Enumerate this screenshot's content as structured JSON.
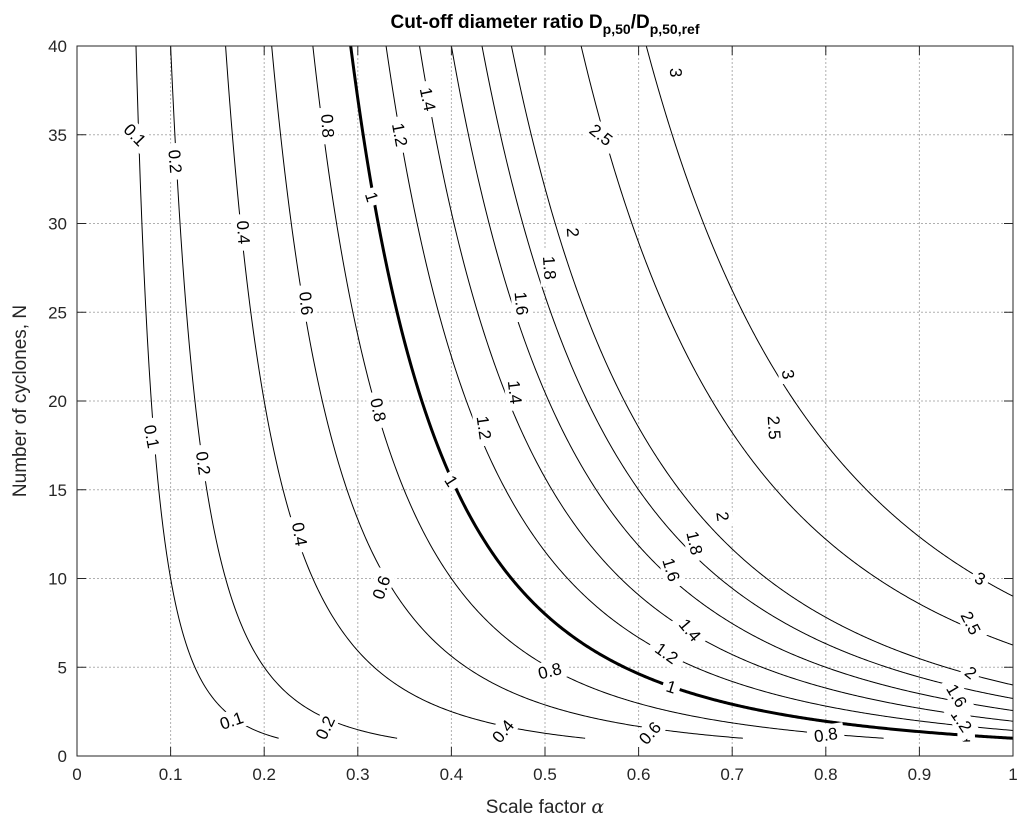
{
  "chart_data": {
    "type": "contour",
    "title_main": "Cut-off diameter ratio D",
    "title_sub1": "p,50",
    "title_mid": "/D",
    "title_sub2": "p,50,ref",
    "xlabel_text": "Scale factor ",
    "xlabel_symbol": "α",
    "ylabel": "Number of cyclones, N",
    "xlim": [
      0,
      1
    ],
    "ylim": [
      0,
      40
    ],
    "xticks": [
      0,
      0.1,
      0.2,
      0.3,
      0.4,
      0.5,
      0.6,
      0.7,
      0.8,
      0.9,
      1
    ],
    "xtick_labels": [
      "0",
      "0.1",
      "0.2",
      "0.3",
      "0.4",
      "0.5",
      "0.6",
      "0.7",
      "0.8",
      "0.9",
      "1"
    ],
    "yticks": [
      0,
      5,
      10,
      15,
      20,
      25,
      30,
      35,
      40
    ],
    "ytick_labels": [
      "0",
      "5",
      "10",
      "15",
      "20",
      "25",
      "30",
      "35",
      "40"
    ],
    "grid": true,
    "relation": "ratio = alpha^1.5 * N^0.5",
    "colors": {
      "line": "#000000",
      "grid": "#b0b0b0",
      "axis": "#262626"
    },
    "levels": [
      {
        "value": 0.1,
        "label": "0.1",
        "bold": false,
        "label_positions": [
          [
            0.062,
            35
          ],
          [
            0.08,
            18
          ],
          [
            0.165,
            2
          ]
        ]
      },
      {
        "value": 0.2,
        "label": "0.2",
        "bold": false,
        "label_positions": [
          [
            0.105,
            33.5
          ],
          [
            0.135,
            16.5
          ],
          [
            0.265,
            1.6
          ]
        ]
      },
      {
        "value": 0.4,
        "label": "0.4",
        "bold": false,
        "label_positions": [
          [
            0.178,
            29.5
          ],
          [
            0.238,
            12.5
          ],
          [
            0.455,
            1.4
          ]
        ]
      },
      {
        "value": 0.6,
        "label": "0.6",
        "bold": false,
        "label_positions": [
          [
            0.245,
            25.5
          ],
          [
            0.325,
            9.5
          ],
          [
            0.612,
            1.3
          ]
        ]
      },
      {
        "value": 0.8,
        "label": "0.8",
        "bold": false,
        "label_positions": [
          [
            0.268,
            35.5
          ],
          [
            0.322,
            19.5
          ],
          [
            0.505,
            4.8
          ],
          [
            0.8,
            1.2
          ]
        ]
      },
      {
        "value": 1,
        "label": "1",
        "bold": true,
        "label_positions": [
          [
            0.315,
            31.5
          ],
          [
            0.4,
            15.5
          ],
          [
            0.635,
            3.9
          ],
          [
            0.95,
            1.15
          ]
        ]
      },
      {
        "value": 1.2,
        "label": "1.2",
        "bold": false,
        "label_positions": [
          [
            0.345,
            35
          ],
          [
            0.435,
            18.5
          ],
          [
            0.63,
            5.8
          ],
          [
            0.945,
            2
          ]
        ]
      },
      {
        "value": 1.4,
        "label": "1.4",
        "bold": false,
        "label_positions": [
          [
            0.375,
            37
          ],
          [
            0.468,
            20.5
          ],
          [
            0.655,
            7.1
          ]
        ]
      },
      {
        "value": 1.6,
        "label": "1.6",
        "bold": false,
        "label_positions": [
          [
            0.475,
            25.5
          ],
          [
            0.635,
            10.5
          ],
          [
            0.94,
            3.4
          ]
        ]
      },
      {
        "value": 1.8,
        "label": "1.8",
        "bold": false,
        "label_positions": [
          [
            0.505,
            27.5
          ],
          [
            0.66,
            12
          ]
        ]
      },
      {
        "value": 2,
        "label": "2",
        "bold": false,
        "label_positions": [
          [
            0.53,
            29.5
          ],
          [
            0.69,
            13.5
          ],
          [
            0.955,
            4.7
          ]
        ]
      },
      {
        "value": 2.5,
        "label": "2.5",
        "bold": false,
        "label_positions": [
          [
            0.56,
            35
          ],
          [
            0.745,
            18.5
          ],
          [
            0.955,
            7.5
          ]
        ]
      },
      {
        "value": 3,
        "label": "3",
        "bold": false,
        "label_positions": [
          [
            0.64,
            38.5
          ],
          [
            0.76,
            21.5
          ],
          [
            0.965,
            10
          ]
        ]
      }
    ]
  }
}
